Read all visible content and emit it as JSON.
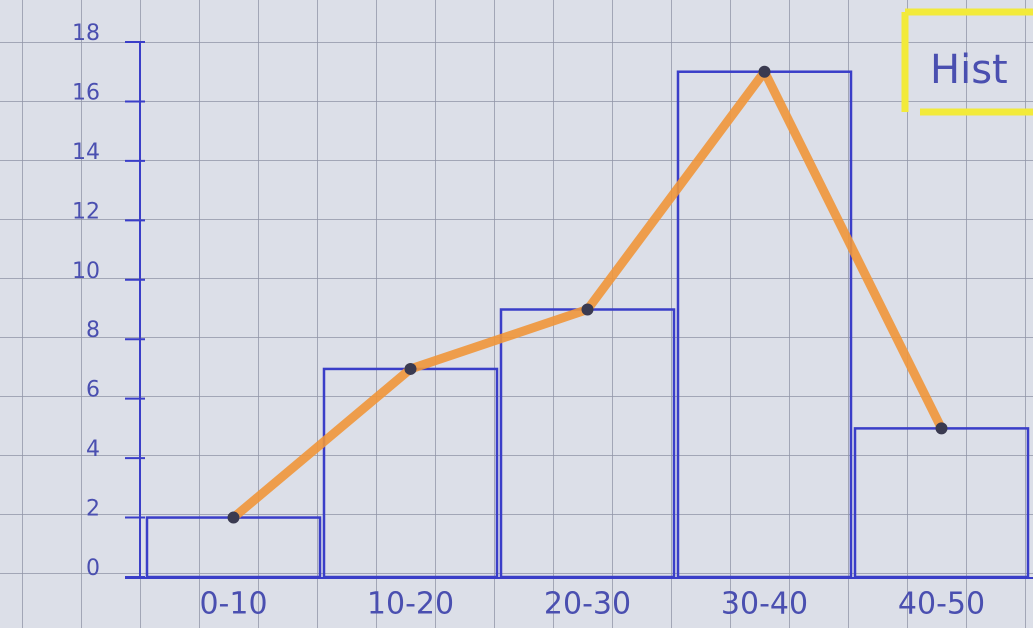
{
  "chart_data": {
    "type": "bar",
    "title": "Hist",
    "categories": [
      "0-10",
      "10-20",
      "20-30",
      "30-40",
      "40-50"
    ],
    "values": [
      2,
      7,
      9,
      17,
      5
    ],
    "bar_color": "#3a3ec8",
    "line_color": "#f0963a",
    "ylim": [
      0,
      18
    ],
    "yticks": [
      0,
      2,
      4,
      6,
      8,
      10,
      12,
      14,
      16,
      18
    ]
  }
}
